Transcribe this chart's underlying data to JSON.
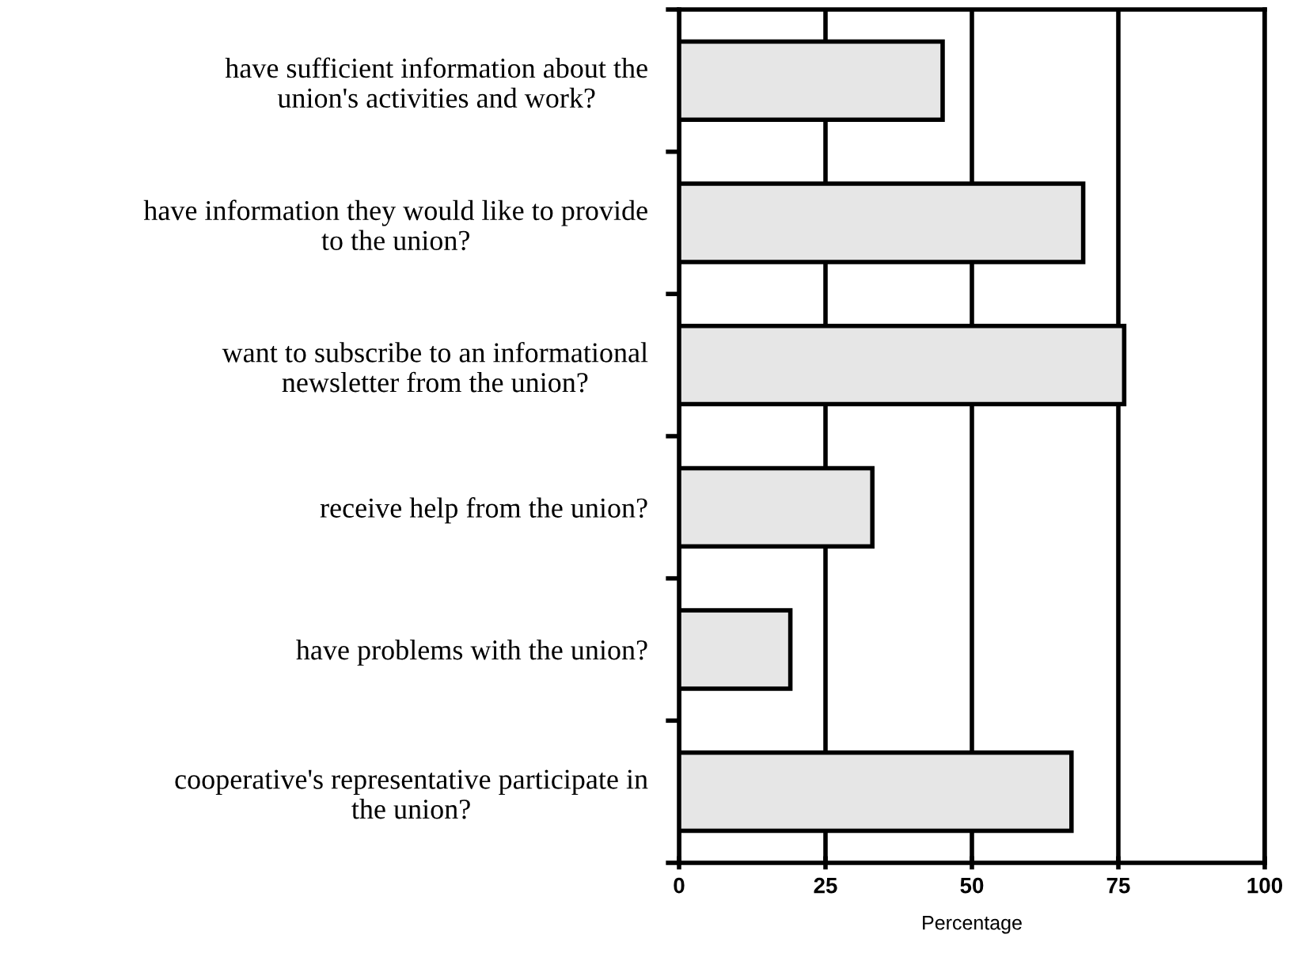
{
  "chart_data": {
    "type": "bar",
    "orientation": "horizontal",
    "xlabel": "Percentage",
    "categories": [
      "have sufficient information about the\nunion's activities and work?",
      "have information they would like to provide\nto the union?",
      "want to subscribe to an informational\nnewsletter from the union?",
      "receive help from the union?",
      "have problems with the union?",
      "cooperative's representative participate in\nthe union?"
    ],
    "values": [
      45,
      69,
      76,
      33,
      19,
      67
    ],
    "color": "#e6e6e6",
    "xlim": [
      0,
      100
    ],
    "xticks": [
      0,
      25,
      50,
      75,
      100
    ],
    "grid": "x"
  }
}
